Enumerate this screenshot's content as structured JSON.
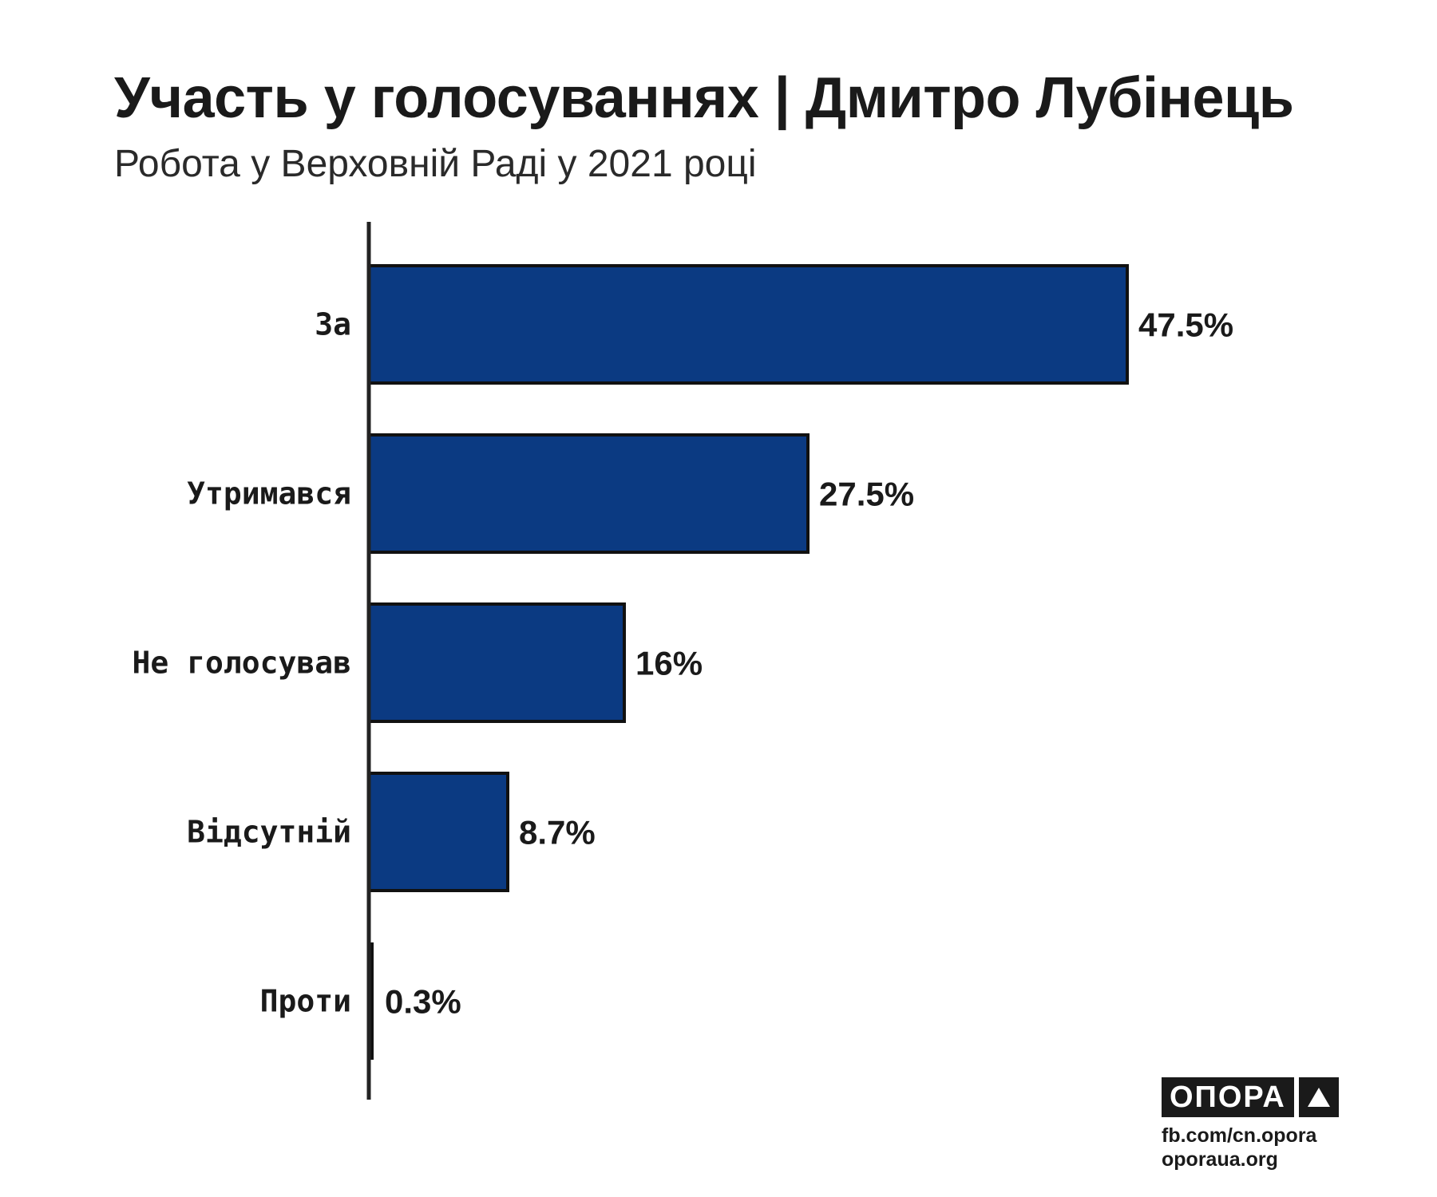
{
  "title": "Участь у голосуваннях | Дмитро Лубінець",
  "subtitle": "Робота у Верховній Раді у 2021 році",
  "colors": {
    "bar": "#0b3a82",
    "bar_border": "#111111",
    "axis": "#222222"
  },
  "chart_data": {
    "type": "bar",
    "orientation": "horizontal",
    "categories": [
      "За",
      "Утримався",
      "Не голосував",
      "Відсутній",
      "Проти"
    ],
    "values": [
      47.5,
      27.5,
      16,
      8.7,
      0.3
    ],
    "value_labels": [
      "47.5%",
      "27.5%",
      "16%",
      "8.7%",
      "0.3%"
    ],
    "unit": "%",
    "grid": false,
    "legend": "none"
  },
  "branding": {
    "logo_text": "ОПОРА",
    "logo_icon": "triangle-icon",
    "source_lines": [
      "fb.com/cn.opora",
      "oporaua.org"
    ]
  }
}
